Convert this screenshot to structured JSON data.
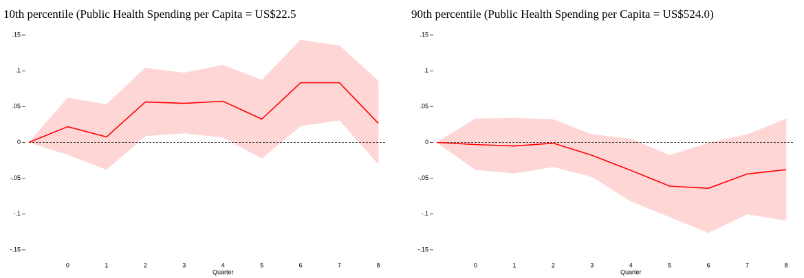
{
  "chart_data": [
    {
      "type": "line",
      "title": "10th percentile (Public Health Spending per Capita = US$22.5",
      "x_label": "Quarter",
      "x": [
        -1,
        0,
        1,
        2,
        3,
        4,
        5,
        6,
        7,
        8
      ],
      "values": [
        0,
        0.022,
        0.0077,
        0.0565,
        0.0546,
        0.0575,
        0.0326,
        0.0833,
        0.0833,
        0.0268
      ],
      "ci_upper": [
        0,
        0.062,
        0.053,
        0.104,
        0.097,
        0.108,
        0.087,
        0.143,
        0.135,
        0.086
      ],
      "ci_lower": [
        0,
        -0.017,
        -0.038,
        0.009,
        0.013,
        0.007,
        -0.022,
        0.023,
        0.031,
        -0.03
      ],
      "color": "#ff0000",
      "band_color": "#ffd6d6",
      "reference_line": 0,
      "xlim": [
        -1,
        8
      ],
      "xticks": [
        0,
        1,
        2,
        3,
        4,
        5,
        6,
        7,
        8
      ],
      "ylim": [
        -0.15,
        0.15
      ],
      "yticks": [
        {
          "value": -0.15,
          "label": "-.15"
        },
        {
          "value": -0.1,
          "label": "-.1"
        },
        {
          "value": -0.05,
          "label": "-.05"
        },
        0,
        {
          "value": 0.05,
          "label": ".05"
        },
        {
          "value": 0.1,
          "label": ".1"
        },
        {
          "value": 0.15,
          "label": ".15"
        }
      ]
    },
    {
      "type": "line",
      "title": "90th percentile (Public Health Spending per Capita = US$524.0)",
      "x_label": "Quarter",
      "x": [
        -1,
        0,
        1,
        2,
        3,
        4,
        5,
        6,
        7,
        8
      ],
      "values": [
        0,
        -0.003,
        -0.005,
        -0.001,
        -0.018,
        -0.039,
        -0.061,
        -0.064,
        -0.044,
        -0.038
      ],
      "ci_upper": [
        0,
        0.033,
        0.034,
        0.032,
        0.011,
        0.005,
        -0.018,
        -0.001,
        0.011,
        0.033
      ],
      "ci_lower": [
        0,
        -0.038,
        -0.043,
        -0.034,
        -0.048,
        -0.082,
        -0.104,
        -0.126,
        -0.1,
        -0.109
      ],
      "color": "#ff0000",
      "band_color": "#ffd6d6",
      "reference_line": 0,
      "xlim": [
        -1,
        8
      ],
      "xticks": [
        0,
        1,
        2,
        3,
        4,
        5,
        6,
        7,
        8
      ],
      "ylim": [
        -0.15,
        0.15
      ],
      "yticks": [
        {
          "value": -0.15,
          "label": "-.15"
        },
        {
          "value": -0.1,
          "label": "-.1"
        },
        {
          "value": -0.05,
          "label": "-.05"
        },
        0,
        {
          "value": 0.05,
          "label": ".05"
        },
        {
          "value": 0.1,
          "label": ".1"
        },
        {
          "value": 0.15,
          "label": ".15"
        }
      ]
    }
  ]
}
